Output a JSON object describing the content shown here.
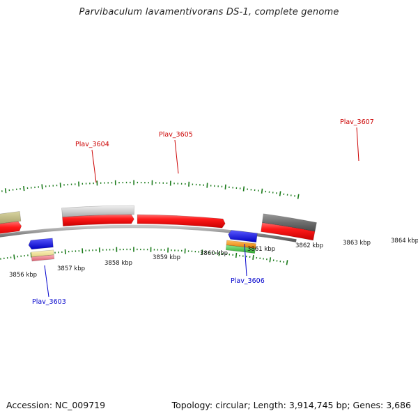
{
  "title": "Parvibaculum lavamentivorans DS-1, complete genome",
  "footer": {
    "accession": "Accession: NC_009719",
    "topology": "Topology: circular; Length: 3,914,745 bp; Genes: 3,686"
  },
  "colors": {
    "forward_label": "#cc0000",
    "reverse_label": "#0000cc",
    "tick": "#1a7a1a",
    "backbone": "#8c8c8c"
  },
  "tick_labels": [
    "3856 kbp",
    "3857 kbp",
    "3858 kbp",
    "3859 kbp",
    "3860 kbp",
    "3861 kbp",
    "3862 kbp",
    "3863 kbp",
    "3864 kbp"
  ],
  "gene_labels": [
    {
      "name": "Plav_3603",
      "strand": "reverse"
    },
    {
      "name": "Plav_3604",
      "strand": "forward"
    },
    {
      "name": "Plav_3605",
      "strand": "forward"
    },
    {
      "name": "Plav_3606",
      "strand": "reverse"
    },
    {
      "name": "Plav_3607",
      "strand": "forward"
    }
  ]
}
